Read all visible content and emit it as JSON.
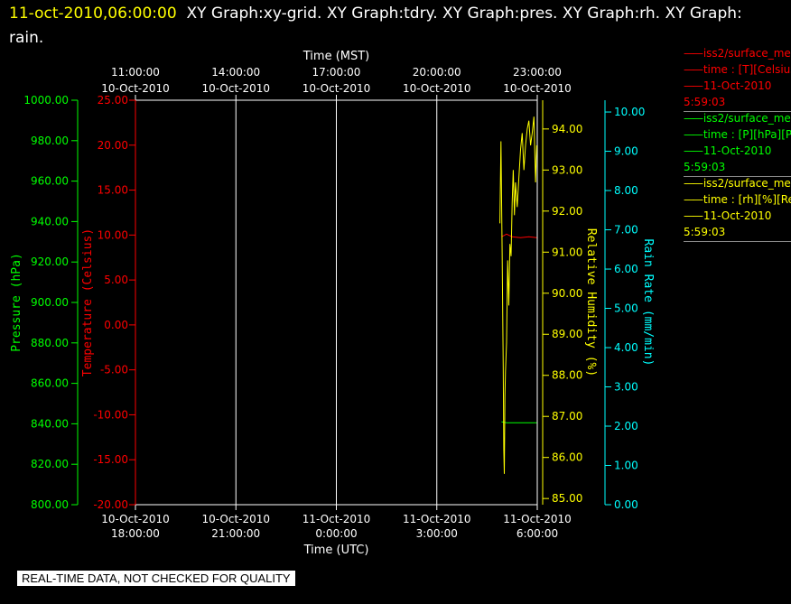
{
  "header": {
    "timestamp": "11-oct-2010,06:00:00",
    "titles": "XY Graph:xy-grid.  XY Graph:tdry.  XY Graph:pres.  XY Graph:rh.  XY Graph: rain."
  },
  "badge": "REAL-TIME DATA, NOT CHECKED FOR QUALITY",
  "legend": [
    {
      "name": "iss2/surface_me",
      "units": "time : [T][Celsius][T",
      "date": "11-Oct-2010",
      "time": "5:59:03",
      "color": "#ff0000"
    },
    {
      "name": "iss2/surface_me",
      "units": "time : [P][hPa][Pres",
      "date": "11-Oct-2010",
      "time": "5:59:03",
      "color": "#00ff00"
    },
    {
      "name": "iss2/surface_me",
      "units": "time : [rh][%][Relati",
      "date": "11-Oct-2010",
      "time": "5:59:03",
      "color": "#ffff00"
    }
  ],
  "chart_data": {
    "type": "line",
    "top_axis": {
      "label": "Time (MST)",
      "ticks": [
        {
          "time": "11:00:00",
          "date": "10-Oct-2010"
        },
        {
          "time": "14:00:00",
          "date": "10-Oct-2010"
        },
        {
          "time": "17:00:00",
          "date": "10-Oct-2010"
        },
        {
          "time": "20:00:00",
          "date": "10-Oct-2010"
        },
        {
          "time": "23:00:00",
          "date": "10-Oct-2010"
        }
      ]
    },
    "bottom_axis": {
      "label": "Time (UTC)",
      "range": [
        "2010-10-10 18:00:00",
        "2010-10-11 06:00:00"
      ],
      "ticks": [
        {
          "date": "10-Oct-2010",
          "time": "18:00:00"
        },
        {
          "date": "10-Oct-2010",
          "time": "21:00:00"
        },
        {
          "date": "11-Oct-2010",
          "time": "0:00:00"
        },
        {
          "date": "11-Oct-2010",
          "time": "3:00:00"
        },
        {
          "date": "11-Oct-2010",
          "time": "6:00:00"
        }
      ]
    },
    "grid": true,
    "axes": {
      "pressure": {
        "label": "Pressure (hPa)",
        "color": "#00ff00",
        "range": [
          800,
          1000
        ],
        "ticks": [
          "800.00",
          "820.00",
          "840.00",
          "860.00",
          "880.00",
          "900.00",
          "920.00",
          "940.00",
          "960.00",
          "980.00",
          "1000.00"
        ]
      },
      "temperature": {
        "label": "Temperature (Celsius)",
        "color": "#ff0000",
        "range": [
          -20,
          25
        ],
        "ticks": [
          "-20.00",
          "-15.00",
          "-10.00",
          "-5.00",
          "0.00",
          "5.00",
          "10.00",
          "15.00",
          "20.00",
          "25.00"
        ]
      },
      "rh": {
        "label": "Relative Humidity (%)",
        "color": "#ffff00",
        "range": [
          84.85,
          94.7
        ],
        "ticks": [
          "85.00",
          "86.00",
          "87.00",
          "88.00",
          "89.00",
          "90.00",
          "91.00",
          "92.00",
          "93.00",
          "94.00"
        ]
      },
      "rain": {
        "label": "Rain Rate (mm/min)",
        "color": "#00ffff",
        "range": [
          0,
          10.3
        ],
        "ticks": [
          "0.00",
          "1.00",
          "2.00",
          "3.00",
          "4.00",
          "5.00",
          "6.00",
          "7.00",
          "8.00",
          "9.00",
          "10.00"
        ]
      }
    },
    "series": [
      {
        "name": "iss2/surface_me",
        "axis": "temperature",
        "color": "#ff0000",
        "x": [
          "2010-10-11 04:56",
          "2010-10-11 05:05",
          "2010-10-11 05:15",
          "2010-10-11 05:30",
          "2010-10-11 05:45",
          "2010-10-11 05:59"
        ],
        "y": [
          9.8,
          10.1,
          9.8,
          9.7,
          9.8,
          9.7
        ]
      },
      {
        "name": "iss2/surface_me",
        "axis": "pressure",
        "color": "#00ff00",
        "x": [
          "2010-10-11 04:56",
          "2010-10-11 05:05",
          "2010-10-11 05:30",
          "2010-10-11 05:59"
        ],
        "y": [
          841,
          840.5,
          840.5,
          840.5
        ]
      },
      {
        "name": "iss2/surface_me",
        "axis": "rh",
        "color": "#ffff00",
        "x": [
          "2010-10-11 04:53",
          "2010-10-11 04:55",
          "2010-10-11 04:57",
          "2010-10-11 04:59",
          "2010-10-11 05:00",
          "2010-10-11 05:01",
          "2010-10-11 05:02",
          "2010-10-11 05:03",
          "2010-10-11 05:05",
          "2010-10-11 05:07",
          "2010-10-11 05:09",
          "2010-10-11 05:11",
          "2010-10-11 05:13",
          "2010-10-11 05:15",
          "2010-10-11 05:17",
          "2010-10-11 05:19",
          "2010-10-11 05:21",
          "2010-10-11 05:24",
          "2010-10-11 05:27",
          "2010-10-11 05:30",
          "2010-10-11 05:33",
          "2010-10-11 05:36",
          "2010-10-11 05:39",
          "2010-10-11 05:42",
          "2010-10-11 05:45",
          "2010-10-11 05:48",
          "2010-10-11 05:51",
          "2010-10-11 05:54",
          "2010-10-11 05:57",
          "2010-10-11 05:59"
        ],
        "y": [
          91.7,
          93.7,
          91.0,
          88.2,
          86.2,
          85.6,
          87.5,
          88.1,
          88.8,
          90.8,
          89.7,
          91.2,
          90.9,
          92.2,
          93.0,
          91.9,
          92.7,
          92.1,
          92.8,
          93.5,
          93.9,
          93.0,
          93.6,
          94.0,
          94.2,
          93.6,
          93.9,
          94.3,
          92.7,
          93.6
        ]
      }
    ]
  }
}
